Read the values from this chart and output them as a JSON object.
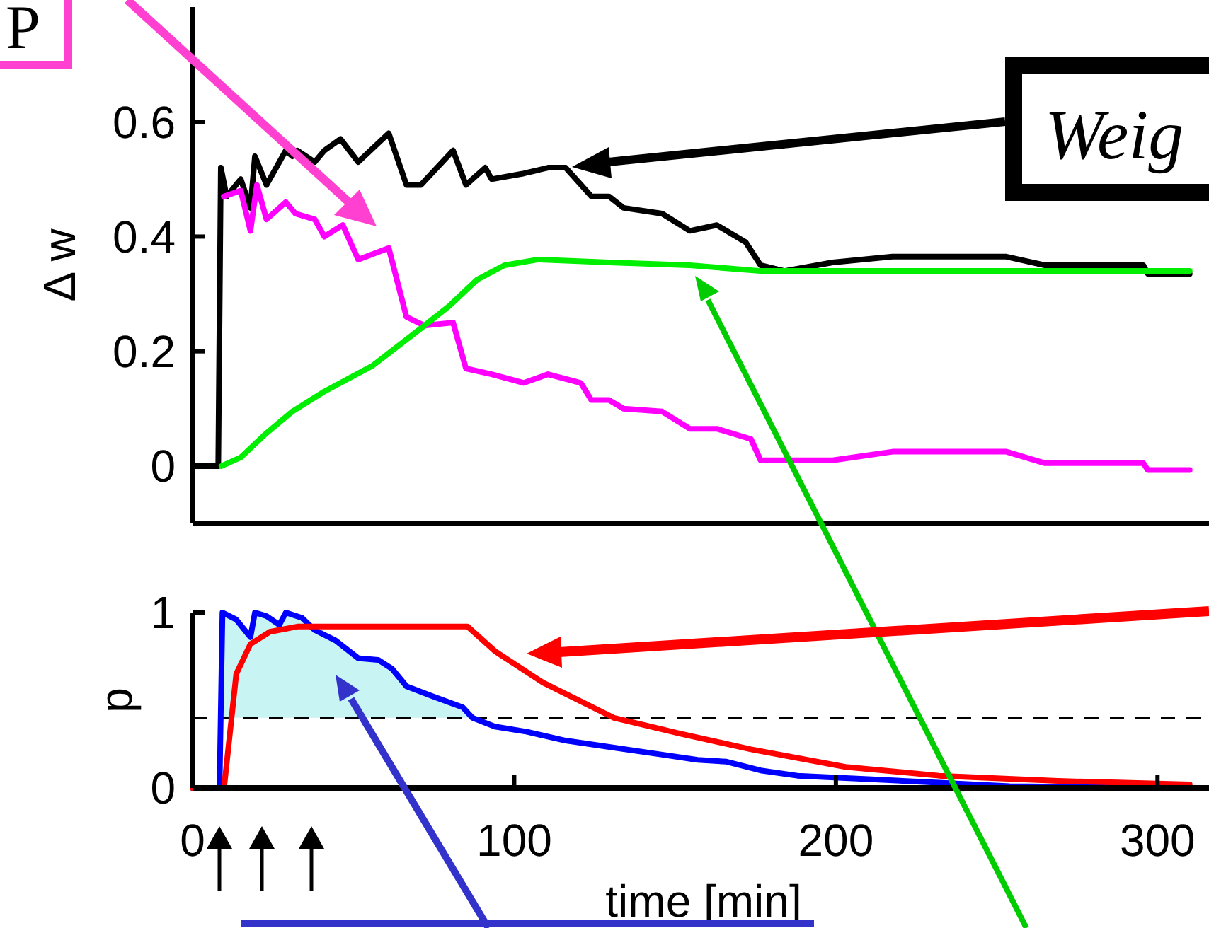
{
  "chart_data": [
    {
      "type": "line",
      "ylabel": "Δ w",
      "xlim": [
        0,
        316
      ],
      "ylim": [
        -0.1,
        0.8
      ],
      "yticks": [
        0,
        0.2,
        0.4,
        0.6
      ],
      "tick_labels": "y",
      "annotations": [
        "P",
        "Weig"
      ],
      "series": [
        {
          "color": "#000000",
          "x": [
            0,
            8,
            8.8,
            10.6,
            15,
            18,
            19.4,
            23,
            29,
            31,
            32.6,
            38,
            41,
            46,
            51.5,
            61,
            66.5,
            71,
            81,
            85,
            91,
            93,
            103,
            110.5,
            116,
            124,
            129.5,
            134,
            146,
            154.6,
            163,
            172,
            176.6,
            184,
            199,
            217.6,
            253,
            265,
            295.6,
            297,
            310
          ],
          "values": [
            0,
            0,
            0.52,
            0.47,
            0.5,
            0.45,
            0.54,
            0.49,
            0.55,
            0.54,
            0.55,
            0.53,
            0.55,
            0.57,
            0.53,
            0.58,
            0.49,
            0.49,
            0.55,
            0.49,
            0.52,
            0.5,
            0.51,
            0.52,
            0.52,
            0.47,
            0.47,
            0.45,
            0.44,
            0.41,
            0.42,
            0.39,
            0.35,
            0.34,
            0.355,
            0.365,
            0.365,
            0.35,
            0.35,
            0.335,
            0.335
          ]
        },
        {
          "color": "#ff00ff",
          "x": [
            9.7,
            15,
            18,
            20,
            23,
            29,
            32,
            38,
            41,
            46.7,
            51.5,
            61,
            66.5,
            72,
            81,
            85,
            93,
            103,
            110.5,
            120.7,
            124,
            129.5,
            134,
            146,
            154.6,
            163,
            173.6,
            176.6,
            184,
            199,
            217.6,
            253,
            265,
            295.6,
            297,
            310
          ],
          "values": [
            0.47,
            0.48,
            0.41,
            0.49,
            0.43,
            0.46,
            0.44,
            0.43,
            0.4,
            0.42,
            0.36,
            0.38,
            0.26,
            0.245,
            0.25,
            0.17,
            0.16,
            0.145,
            0.16,
            0.145,
            0.115,
            0.115,
            0.1,
            0.095,
            0.065,
            0.065,
            0.047,
            0.01,
            0.01,
            0.01,
            0.025,
            0.025,
            0.005,
            0.005,
            -0.007,
            -0.007
          ]
        },
        {
          "color": "#00ee00",
          "x": [
            9,
            15,
            22.5,
            31,
            41,
            56,
            71,
            80,
            88.5,
            97,
            107.5,
            129.5,
            154.6,
            176.6,
            310
          ],
          "values": [
            0,
            0.015,
            0.055,
            0.095,
            0.13,
            0.175,
            0.24,
            0.28,
            0.325,
            0.35,
            0.36,
            0.355,
            0.35,
            0.34,
            0.34
          ]
        }
      ]
    },
    {
      "type": "line",
      "ylabel": "p",
      "xlabel": "time [min]",
      "xlim": [
        0,
        316
      ],
      "xticks": [
        0,
        100,
        200,
        300
      ],
      "ylim": [
        0,
        1
      ],
      "yticks": [
        0,
        1
      ],
      "ref_lines": [
        {
          "axis": "y",
          "value": 0.4,
          "color": "#000000",
          "line_style": "dashed"
        }
      ],
      "series": [
        {
          "color": "#0000ff",
          "x": [
            0,
            8.4,
            9.3,
            13.6,
            18,
            19.4,
            23,
            27,
            29,
            34,
            38,
            44.5,
            51.5,
            57.7,
            62,
            66.5,
            75,
            84,
            87,
            94,
            104,
            116,
            131,
            146,
            157,
            166,
            176.6,
            188,
            210,
            232,
            254,
            310
          ],
          "values": [
            0,
            0,
            1,
            0.96,
            0.86,
            1,
            0.98,
            0.93,
            1,
            0.97,
            0.9,
            0.84,
            0.74,
            0.73,
            0.68,
            0.58,
            0.52,
            0.46,
            0.4,
            0.35,
            0.32,
            0.27,
            0.23,
            0.19,
            0.16,
            0.15,
            0.1,
            0.07,
            0.05,
            0.03,
            0.01,
            0
          ],
          "lower": [
            null,
            null,
            0.4,
            0.4,
            0.4,
            0.4,
            0.4,
            0.4,
            0.4,
            0.4,
            0.4,
            0.4,
            0.4,
            0.4,
            0.4,
            0.4,
            0.4,
            0.4,
            0.4,
            null,
            null,
            null,
            null,
            null,
            null,
            null,
            null,
            null,
            null,
            null,
            null,
            null
          ],
          "upper": [
            null,
            null,
            1,
            0.96,
            0.86,
            1,
            0.98,
            0.93,
            1,
            0.97,
            0.9,
            0.84,
            0.74,
            0.73,
            0.68,
            0.58,
            0.52,
            0.46,
            0.4,
            null,
            null,
            null,
            null,
            null,
            null,
            null,
            null,
            null,
            null,
            null,
            null,
            null
          ]
        },
        {
          "color": "#ff0000",
          "x": [
            0,
            9.8,
            13.6,
            18,
            24,
            32.6,
            40,
            85.5,
            94,
            109,
            131,
            151.5,
            173.6,
            203,
            232,
            269,
            310
          ],
          "values": [
            0,
            0,
            0.65,
            0.82,
            0.89,
            0.92,
            0.92,
            0.92,
            0.78,
            0.6,
            0.4,
            0.31,
            0.22,
            0.12,
            0.07,
            0.04,
            0.02
          ]
        }
      ]
    }
  ]
}
